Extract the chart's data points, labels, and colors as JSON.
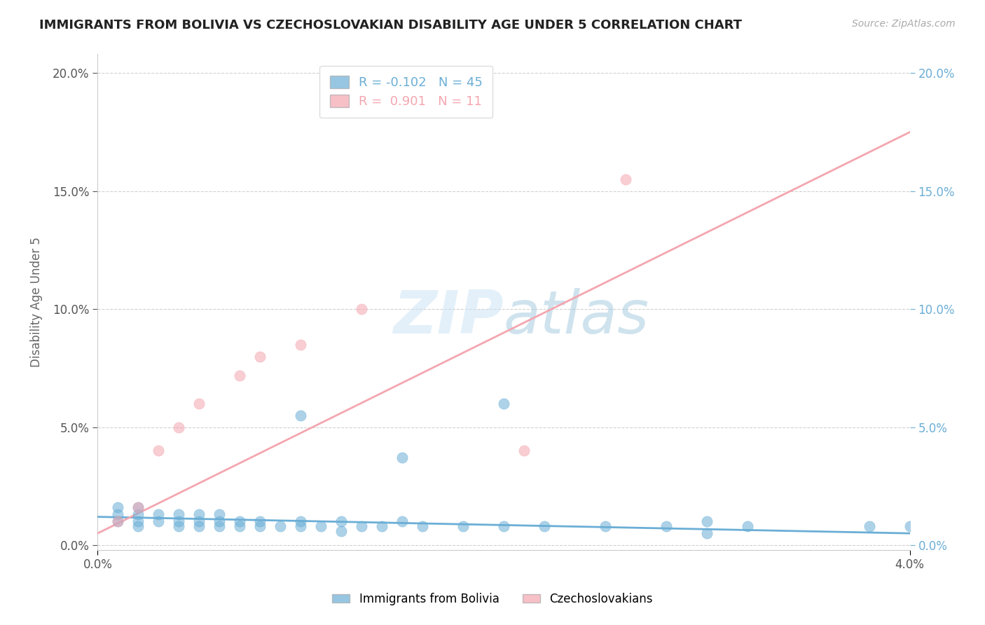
{
  "title": "IMMIGRANTS FROM BOLIVIA VS CZECHOSLOVAKIAN DISABILITY AGE UNDER 5 CORRELATION CHART",
  "source_text": "Source: ZipAtlas.com",
  "ylabel": "Disability Age Under 5",
  "background_color": "#ffffff",
  "watermark_text": "ZIPatlas",
  "bolivia_color": "#6baed6",
  "czech_color": "#f4a6b0",
  "bolivia_R": -0.102,
  "bolivia_N": 45,
  "czech_R": 0.901,
  "czech_N": 11,
  "xmin": 0.0,
  "xmax": 0.04,
  "ymin": -0.002,
  "ymax": 0.208,
  "yticks": [
    0.0,
    0.05,
    0.1,
    0.15,
    0.2
  ],
  "ytick_labels": [
    "0.0%",
    "5.0%",
    "10.0%",
    "15.0%",
    "20.0%"
  ],
  "xtick_vals": [
    0.0,
    0.04
  ],
  "xtick_labels": [
    "0.0%",
    "4.0%"
  ],
  "bolivia_line_x": [
    0.0,
    0.04
  ],
  "bolivia_line_y": [
    0.012,
    0.005
  ],
  "czech_line_x": [
    0.0,
    0.04
  ],
  "czech_line_y": [
    0.005,
    0.175
  ],
  "bolivia_points_x": [
    0.001,
    0.001,
    0.001,
    0.002,
    0.002,
    0.002,
    0.002,
    0.003,
    0.003,
    0.004,
    0.004,
    0.004,
    0.005,
    0.005,
    0.005,
    0.006,
    0.006,
    0.006,
    0.007,
    0.007,
    0.008,
    0.008,
    0.009,
    0.01,
    0.01,
    0.011,
    0.012,
    0.012,
    0.013,
    0.014,
    0.015,
    0.016,
    0.018,
    0.02,
    0.022,
    0.025,
    0.01,
    0.015,
    0.02,
    0.028,
    0.03,
    0.03,
    0.032,
    0.038,
    0.04
  ],
  "bolivia_points_y": [
    0.01,
    0.013,
    0.016,
    0.008,
    0.01,
    0.013,
    0.016,
    0.01,
    0.013,
    0.008,
    0.01,
    0.013,
    0.008,
    0.01,
    0.013,
    0.008,
    0.01,
    0.013,
    0.008,
    0.01,
    0.008,
    0.01,
    0.008,
    0.008,
    0.01,
    0.008,
    0.006,
    0.01,
    0.008,
    0.008,
    0.01,
    0.008,
    0.008,
    0.008,
    0.008,
    0.008,
    0.055,
    0.037,
    0.06,
    0.008,
    0.01,
    0.005,
    0.008,
    0.008,
    0.008
  ],
  "czech_points_x": [
    0.001,
    0.002,
    0.003,
    0.004,
    0.005,
    0.007,
    0.008,
    0.01,
    0.013,
    0.021,
    0.026
  ],
  "czech_points_y": [
    0.01,
    0.016,
    0.04,
    0.05,
    0.06,
    0.072,
    0.08,
    0.085,
    0.1,
    0.04,
    0.155
  ]
}
